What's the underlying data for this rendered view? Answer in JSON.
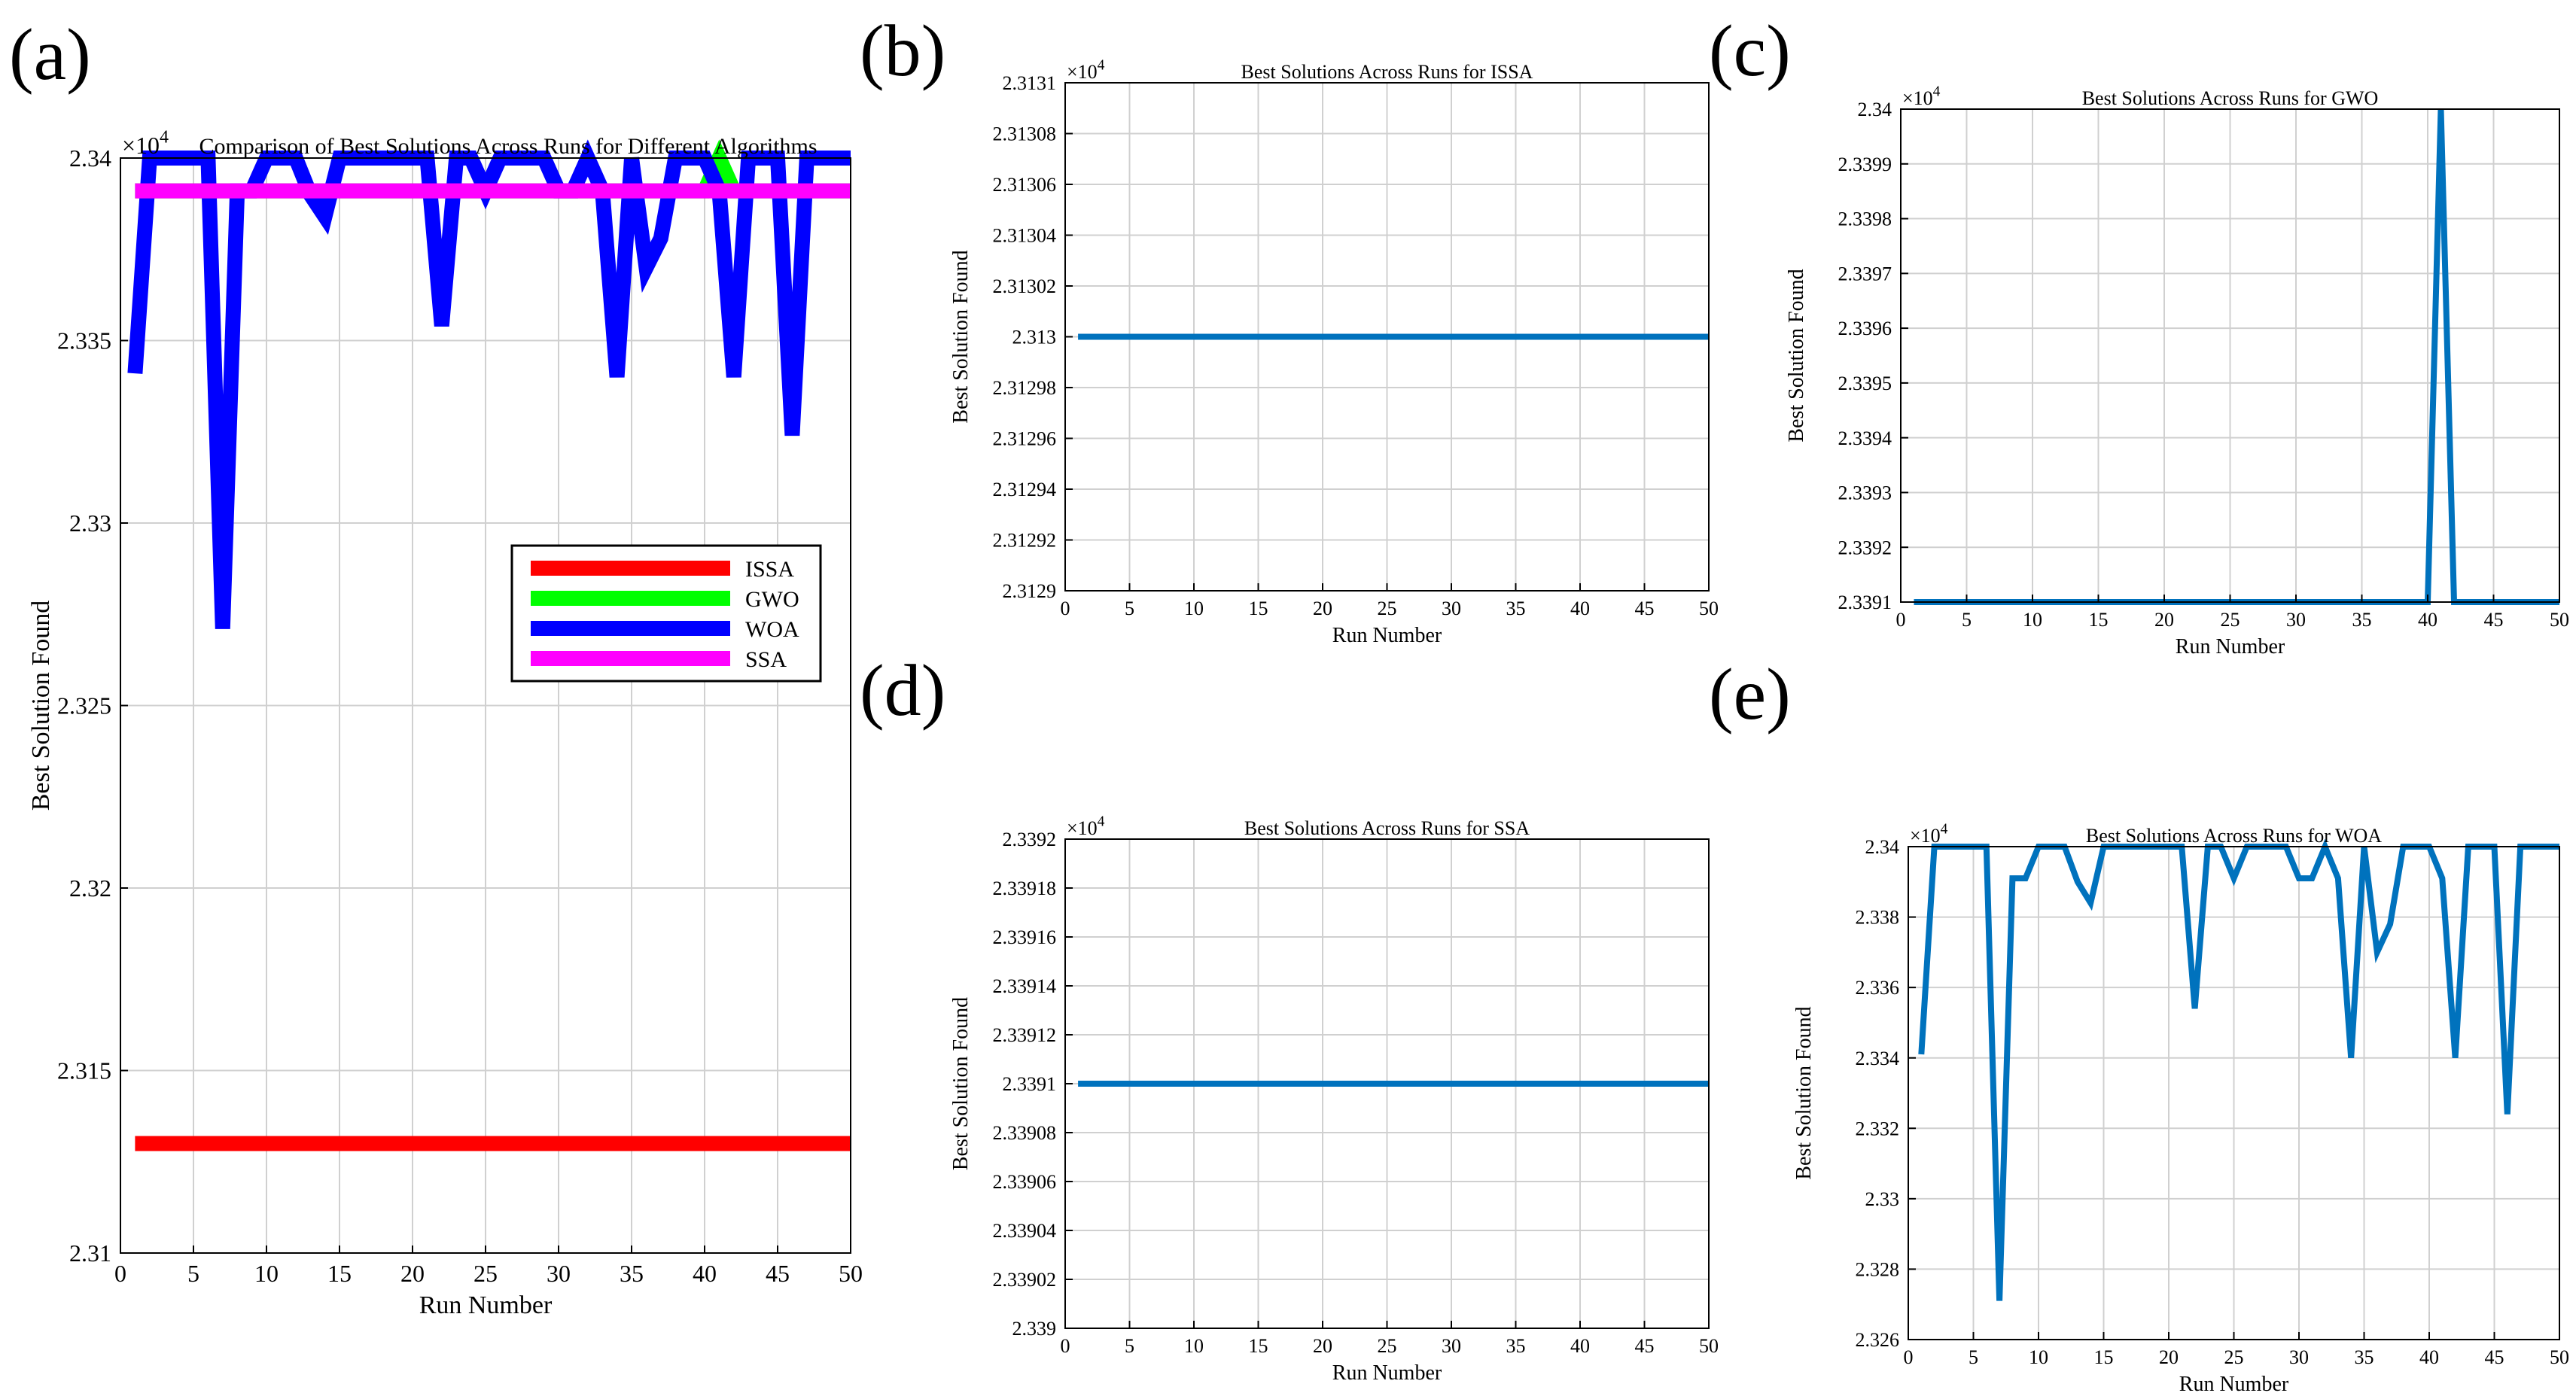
{
  "figure": {
    "panels": [
      {
        "label": "(a)"
      },
      {
        "label": "(b)"
      },
      {
        "label": "(c)"
      },
      {
        "label": "(d)"
      },
      {
        "label": "(e)"
      }
    ]
  },
  "colors": {
    "ISSA": "#ff0000",
    "GWO": "#00ff00",
    "WOA": "#0000ff",
    "SSA": "#ff00ff",
    "single": "#0072bd",
    "grid": "#d0d0d0",
    "axis": "#000000"
  },
  "chart_data": [
    {
      "panel": "(a)",
      "type": "line",
      "title": "Comparison of Best Solutions Across Runs for Different Algorithms",
      "xlabel": "Run Number",
      "ylabel": "Best Solution Found",
      "exponent_label": "×10",
      "exponent_power": "4",
      "xlim": [
        0,
        50
      ],
      "ylim": [
        2.31,
        2.34
      ],
      "xticks": [
        0,
        5,
        10,
        15,
        20,
        25,
        30,
        35,
        40,
        45,
        50
      ],
      "yticks": [
        2.31,
        2.315,
        2.32,
        2.325,
        2.33,
        2.335,
        2.34
      ],
      "ytick_labels": [
        "2.31",
        "2.315",
        "2.32",
        "2.325",
        "2.33",
        "2.335",
        "2.34"
      ],
      "legend_position": "center-right",
      "x": [
        1,
        2,
        3,
        4,
        5,
        6,
        7,
        8,
        9,
        10,
        11,
        12,
        13,
        14,
        15,
        16,
        17,
        18,
        19,
        20,
        21,
        22,
        23,
        24,
        25,
        26,
        27,
        28,
        29,
        30,
        31,
        32,
        33,
        34,
        35,
        36,
        37,
        38,
        39,
        40,
        41,
        42,
        43,
        44,
        45,
        46,
        47,
        48,
        49,
        50
      ],
      "series": [
        {
          "name": "ISSA",
          "values": [
            2.313,
            2.313,
            2.313,
            2.313,
            2.313,
            2.313,
            2.313,
            2.313,
            2.313,
            2.313,
            2.313,
            2.313,
            2.313,
            2.313,
            2.313,
            2.313,
            2.313,
            2.313,
            2.313,
            2.313,
            2.313,
            2.313,
            2.313,
            2.313,
            2.313,
            2.313,
            2.313,
            2.313,
            2.313,
            2.313,
            2.313,
            2.313,
            2.313,
            2.313,
            2.313,
            2.313,
            2.313,
            2.313,
            2.313,
            2.313,
            2.313,
            2.313,
            2.313,
            2.313,
            2.313,
            2.313,
            2.313,
            2.313,
            2.313,
            2.313
          ]
        },
        {
          "name": "GWO",
          "values": [
            2.3391,
            2.3391,
            2.3391,
            2.3391,
            2.3391,
            2.3391,
            2.3391,
            2.3391,
            2.3391,
            2.3391,
            2.3391,
            2.3391,
            2.3391,
            2.3391,
            2.3391,
            2.3391,
            2.3391,
            2.3391,
            2.3391,
            2.3391,
            2.3391,
            2.3391,
            2.3391,
            2.3391,
            2.3391,
            2.3391,
            2.3391,
            2.3391,
            2.3391,
            2.3391,
            2.3391,
            2.3391,
            2.3391,
            2.3391,
            2.3391,
            2.3391,
            2.3391,
            2.3391,
            2.3391,
            2.3391,
            2.34,
            2.3391,
            2.3391,
            2.3391,
            2.3391,
            2.3391,
            2.3391,
            2.3391,
            2.3391,
            2.3391
          ]
        },
        {
          "name": "WOA",
          "values": [
            2.3341,
            2.34,
            2.34,
            2.34,
            2.34,
            2.34,
            2.3271,
            2.3391,
            2.3391,
            2.34,
            2.34,
            2.34,
            2.339,
            2.3384,
            2.34,
            2.34,
            2.34,
            2.34,
            2.34,
            2.34,
            2.34,
            2.3354,
            2.34,
            2.34,
            2.3391,
            2.34,
            2.34,
            2.34,
            2.34,
            2.3391,
            2.3391,
            2.34,
            2.3391,
            2.334,
            2.34,
            2.337,
            2.3378,
            2.34,
            2.34,
            2.34,
            2.3391,
            2.334,
            2.34,
            2.34,
            2.34,
            2.3324,
            2.34,
            2.34,
            2.34,
            2.34
          ]
        },
        {
          "name": "SSA",
          "values": [
            2.3391,
            2.3391,
            2.3391,
            2.3391,
            2.3391,
            2.3391,
            2.3391,
            2.3391,
            2.3391,
            2.3391,
            2.3391,
            2.3391,
            2.3391,
            2.3391,
            2.3391,
            2.3391,
            2.3391,
            2.3391,
            2.3391,
            2.3391,
            2.3391,
            2.3391,
            2.3391,
            2.3391,
            2.3391,
            2.3391,
            2.3391,
            2.3391,
            2.3391,
            2.3391,
            2.3391,
            2.3391,
            2.3391,
            2.3391,
            2.3391,
            2.3391,
            2.3391,
            2.3391,
            2.3391,
            2.3391,
            2.3391,
            2.3391,
            2.3391,
            2.3391,
            2.3391,
            2.3391,
            2.3391,
            2.3391,
            2.3391,
            2.3391
          ]
        }
      ]
    },
    {
      "panel": "(b)",
      "type": "line",
      "title": "Best Solutions Across Runs for ISSA",
      "xlabel": "Run Number",
      "ylabel": "Best Solution Found",
      "exponent_label": "×10",
      "exponent_power": "4",
      "xlim": [
        0,
        50
      ],
      "ylim": [
        2.3129,
        2.3131
      ],
      "xticks": [
        0,
        5,
        10,
        15,
        20,
        25,
        30,
        35,
        40,
        45,
        50
      ],
      "yticks": [
        2.3129,
        2.31292,
        2.31294,
        2.31296,
        2.31298,
        2.313,
        2.31302,
        2.31304,
        2.31306,
        2.31308,
        2.3131
      ],
      "ytick_labels": [
        "2.3129",
        "2.31292",
        "2.31294",
        "2.31296",
        "2.31298",
        "2.313",
        "2.31302",
        "2.31304",
        "2.31306",
        "2.31308",
        "2.3131"
      ],
      "x": [
        1,
        50
      ],
      "series": [
        {
          "name": "ISSA",
          "values": [
            2.313,
            2.313
          ]
        }
      ]
    },
    {
      "panel": "(c)",
      "type": "line",
      "title": "Best Solutions Across Runs for GWO",
      "xlabel": "Run Number",
      "ylabel": "Best Solution Found",
      "exponent_label": "×10",
      "exponent_power": "4",
      "xlim": [
        0,
        50
      ],
      "ylim": [
        2.3391,
        2.34
      ],
      "xticks": [
        0,
        5,
        10,
        15,
        20,
        25,
        30,
        35,
        40,
        45,
        50
      ],
      "yticks": [
        2.3391,
        2.3392,
        2.3393,
        2.3394,
        2.3395,
        2.3396,
        2.3397,
        2.3398,
        2.3399,
        2.34
      ],
      "ytick_labels": [
        "2.3391",
        "2.3392",
        "2.3393",
        "2.3394",
        "2.3395",
        "2.3396",
        "2.3397",
        "2.3398",
        "2.3399",
        "2.34"
      ],
      "x": [
        1,
        40,
        41,
        42,
        50
      ],
      "series": [
        {
          "name": "GWO",
          "values": [
            2.3391,
            2.3391,
            2.34,
            2.3391,
            2.3391
          ]
        }
      ]
    },
    {
      "panel": "(d)",
      "type": "line",
      "title": "Best Solutions Across Runs for SSA",
      "xlabel": "Run Number",
      "ylabel": "Best Solution Found",
      "exponent_label": "×10",
      "exponent_power": "4",
      "xlim": [
        0,
        50
      ],
      "ylim": [
        2.339,
        2.3392
      ],
      "xticks": [
        0,
        5,
        10,
        15,
        20,
        25,
        30,
        35,
        40,
        45,
        50
      ],
      "yticks": [
        2.339,
        2.33902,
        2.33904,
        2.33906,
        2.33908,
        2.3391,
        2.33912,
        2.33914,
        2.33916,
        2.33918,
        2.3392
      ],
      "ytick_labels": [
        "2.339",
        "2.33902",
        "2.33904",
        "2.33906",
        "2.33908",
        "2.3391",
        "2.33912",
        "2.33914",
        "2.33916",
        "2.33918",
        "2.3392"
      ],
      "x": [
        1,
        50
      ],
      "series": [
        {
          "name": "SSA",
          "values": [
            2.3391,
            2.3391
          ]
        }
      ]
    },
    {
      "panel": "(e)",
      "type": "line",
      "title": "Best Solutions Across Runs for WOA",
      "xlabel": "Run Number",
      "ylabel": "Best Solution Found",
      "exponent_label": "×10",
      "exponent_power": "4",
      "xlim": [
        0,
        50
      ],
      "ylim": [
        2.326,
        2.34
      ],
      "xticks": [
        0,
        5,
        10,
        15,
        20,
        25,
        30,
        35,
        40,
        45,
        50
      ],
      "yticks": [
        2.326,
        2.328,
        2.33,
        2.332,
        2.334,
        2.336,
        2.338,
        2.34
      ],
      "ytick_labels": [
        "2.326",
        "2.328",
        "2.33",
        "2.332",
        "2.334",
        "2.336",
        "2.338",
        "2.34"
      ],
      "x": [
        1,
        2,
        3,
        4,
        5,
        6,
        7,
        8,
        9,
        10,
        11,
        12,
        13,
        14,
        15,
        16,
        17,
        18,
        19,
        20,
        21,
        22,
        23,
        24,
        25,
        26,
        27,
        28,
        29,
        30,
        31,
        32,
        33,
        34,
        35,
        36,
        37,
        38,
        39,
        40,
        41,
        42,
        43,
        44,
        45,
        46,
        47,
        48,
        49,
        50
      ],
      "series": [
        {
          "name": "WOA",
          "values": [
            2.3341,
            2.34,
            2.34,
            2.34,
            2.34,
            2.34,
            2.3271,
            2.3391,
            2.3391,
            2.34,
            2.34,
            2.34,
            2.339,
            2.3384,
            2.34,
            2.34,
            2.34,
            2.34,
            2.34,
            2.34,
            2.34,
            2.3354,
            2.34,
            2.34,
            2.3391,
            2.34,
            2.34,
            2.34,
            2.34,
            2.3391,
            2.3391,
            2.34,
            2.3391,
            2.334,
            2.34,
            2.337,
            2.3378,
            2.34,
            2.34,
            2.34,
            2.3391,
            2.334,
            2.34,
            2.34,
            2.34,
            2.3324,
            2.34,
            2.34,
            2.34,
            2.34
          ]
        }
      ]
    }
  ]
}
